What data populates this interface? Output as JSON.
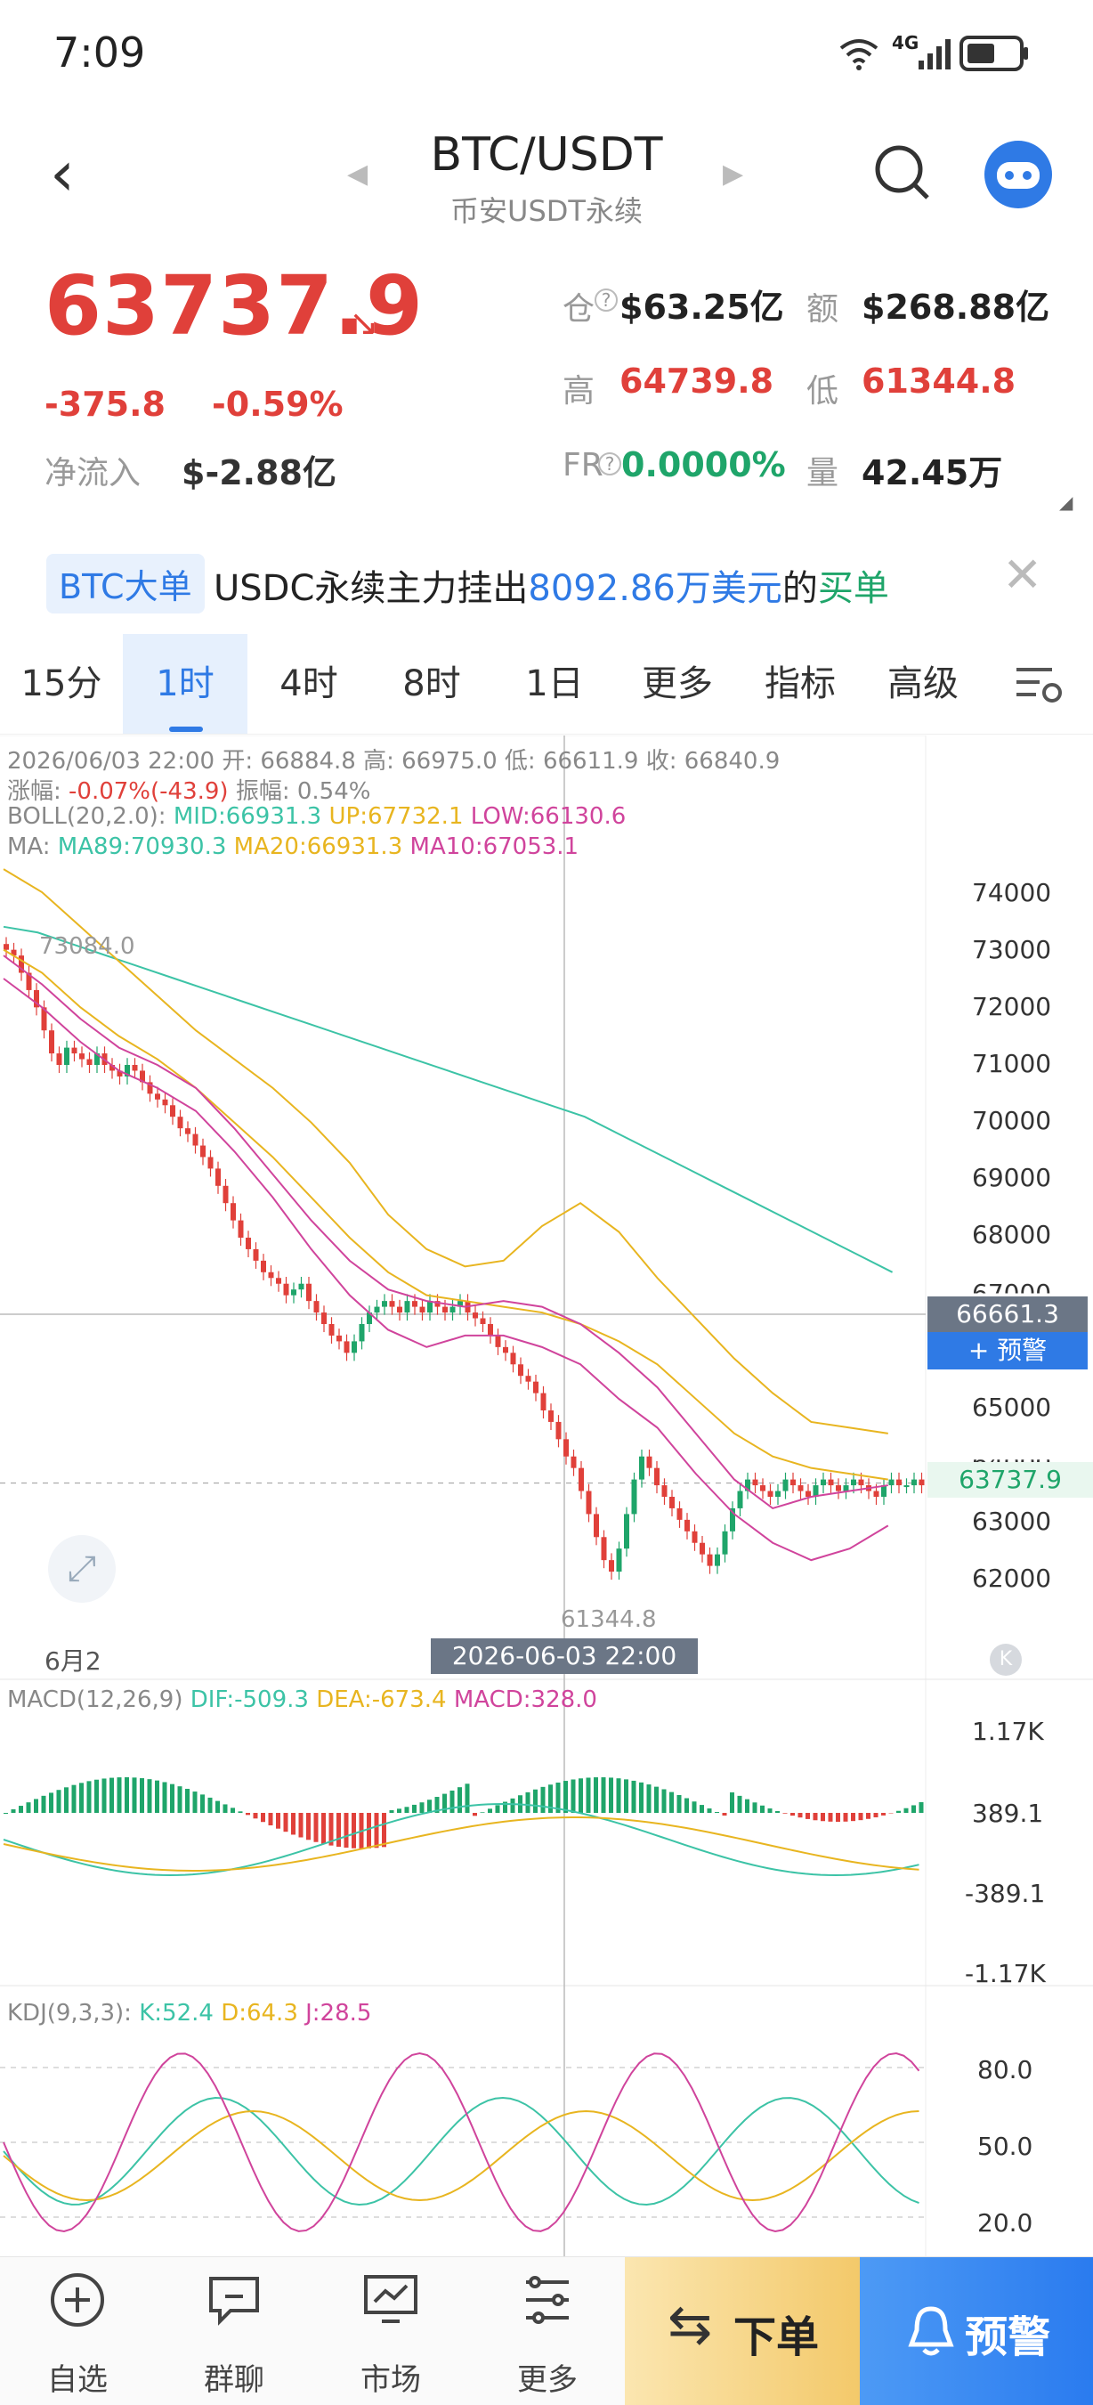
{
  "status_bar": {
    "time": "7:09",
    "network": "4G"
  },
  "header": {
    "pair": "BTC/USDT",
    "subtitle": "币安USDT永续"
  },
  "ticker": {
    "last_price": "63737.9",
    "change": "-375.8",
    "change_pct": "-0.59%",
    "net_inflow_label": "净流入",
    "net_inflow": "$-2.88亿",
    "open_interest_label": "仓",
    "open_interest": "$63.25亿",
    "turnover_label": "额",
    "turnover": "$268.88亿",
    "high_label": "高",
    "high": "64739.8",
    "low_label": "低",
    "low": "61344.8",
    "funding_label": "FR",
    "funding_rate": "0.0000%",
    "volume_label": "量",
    "volume": "42.45万"
  },
  "banner": {
    "tag": "BTC大单",
    "text_pre": "USDC永续主力挂出",
    "amount": "8092.86万美元",
    "text_mid": "的",
    "side": "买单"
  },
  "tabs": [
    {
      "label": "15分",
      "active": false
    },
    {
      "label": "1时",
      "active": true
    },
    {
      "label": "4时",
      "active": false
    },
    {
      "label": "8时",
      "active": false
    },
    {
      "label": "1日",
      "active": false
    },
    {
      "label": "更多",
      "active": false
    },
    {
      "label": "指标",
      "active": false
    },
    {
      "label": "高级",
      "active": false
    }
  ],
  "candle_info": {
    "line1": "2026/06/03 22:00 开: 66884.8 高: 66975.0 低: 66611.9 收: 66840.9",
    "amp_label": "涨幅:",
    "amp_value": "-0.07%(-43.9)",
    "range_text": "振幅: 0.54%",
    "boll_label": "BOLL(20,2.0):",
    "boll_mid": "MID:66931.3",
    "boll_up": "UP:67732.1",
    "boll_low": "LOW:66130.6",
    "ma_label": "MA:",
    "ma89": "MA89:70930.3",
    "ma20": "MA20:66931.3",
    "ma10": "MA10:67053.1"
  },
  "price_axis": [
    "74000",
    "73000",
    "72000",
    "71000",
    "70000",
    "69000",
    "68000",
    "67000",
    "65000",
    "64000",
    "63000",
    "62000"
  ],
  "markers": {
    "high_mark": "73084.0",
    "low_mark": "61344.8",
    "crosshair_price": "66661.3",
    "alert_button": "+ 预警",
    "last_price_tag": "63737.9",
    "date_left": "6月2",
    "crosshair_time": "2026-06-03 22:00"
  },
  "macd": {
    "label": "MACD(12,26,9)",
    "dif": "DIF:-509.3",
    "dea": "DEA:-673.4",
    "macd": "MACD:328.0",
    "axis": [
      "1.17K",
      "389.1",
      "-389.1",
      "-1.17K"
    ]
  },
  "kdj": {
    "label": "KDJ(9,3,3):",
    "k": "K:52.4",
    "d": "D:64.3",
    "j": "J:28.5",
    "axis": [
      "80.0",
      "50.0",
      "20.0"
    ]
  },
  "bottom_nav": [
    {
      "label": "自选",
      "icon": "plus-circle-icon"
    },
    {
      "label": "群聊",
      "icon": "chat-icon"
    },
    {
      "label": "市场",
      "icon": "market-icon"
    },
    {
      "label": "更多",
      "icon": "more-icon"
    }
  ],
  "order_button": "下单",
  "alert_nav_button": "预警",
  "colors": {
    "up": "#1fa56a",
    "down": "#e0403a",
    "accent": "#2f7ae5",
    "ma89": "#3cc3a6",
    "ma20": "#e8b520",
    "ma10": "#d0449c"
  }
}
